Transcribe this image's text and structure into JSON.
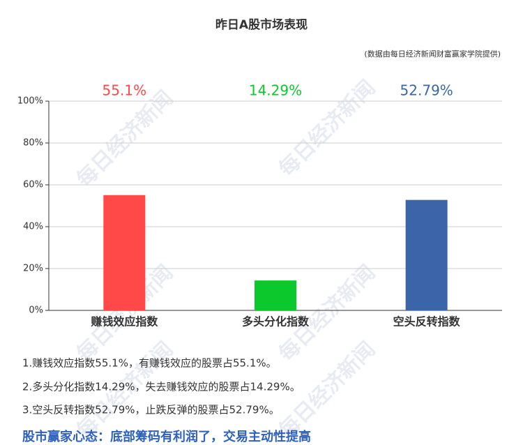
{
  "chart_data": {
    "type": "bar",
    "title": "昨日A股市场表现",
    "subtitle": "(数据由每日经济新闻财富赢家学院提供)",
    "categories": [
      "赚钱效应指数",
      "多头分化指数",
      "空头反转指数"
    ],
    "values": [
      55.1,
      14.29,
      52.79
    ],
    "value_labels": [
      "55.1%",
      "14.29%",
      "52.79%"
    ],
    "colors": [
      "#ff4848",
      "#0bc92d",
      "#3b65a8"
    ],
    "ylim": [
      0,
      100
    ],
    "yticks": [
      {
        "value": 0,
        "label": "0%"
      },
      {
        "value": 20,
        "label": "20%"
      },
      {
        "value": 40,
        "label": "40%"
      },
      {
        "value": 60,
        "label": "60%"
      },
      {
        "value": 80,
        "label": "80%"
      },
      {
        "value": 100,
        "label": "100%"
      }
    ],
    "grid": true
  },
  "watermark": "每日经济新闻",
  "notes": [
    "1.赚钱效应指数55.1%，有赚钱效应的股票占55.1%。",
    "2.多头分化指数14.29%，失去赚钱效应的股票占14.29%。",
    "3.空头反转指数52.79%，止跌反弹的股票占52.79%。"
  ],
  "headline": "股市赢家心态：底部筹码有利润了，交易主动性提高"
}
